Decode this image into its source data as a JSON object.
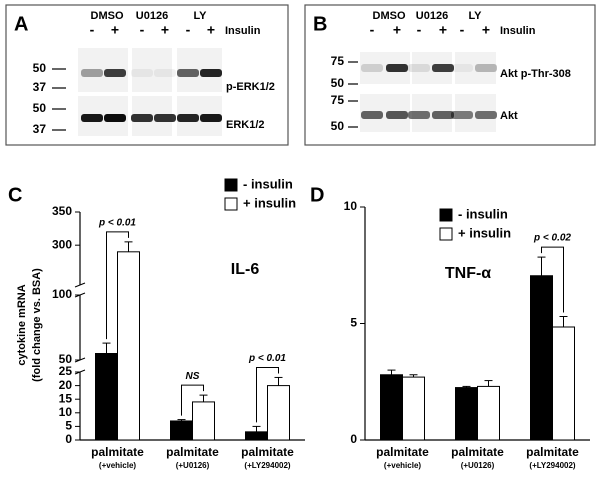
{
  "blots": [
    {
      "panel": "A",
      "groups": [
        "DMSO",
        "U0126",
        "LY"
      ],
      "lanes": [
        "-",
        "+",
        "-",
        "+",
        "-",
        "+"
      ],
      "treatment": "Insulin",
      "markers": [
        50,
        37,
        50,
        37
      ],
      "bands": [
        "p-ERK1/2",
        "ERK1/2"
      ]
    },
    {
      "panel": "B",
      "groups": [
        "DMSO",
        "U0126",
        "LY"
      ],
      "lanes": [
        "-",
        "+",
        "-",
        "+",
        "-",
        "+"
      ],
      "treatment": "Insulin",
      "markers": [
        75,
        50,
        75,
        50
      ],
      "bands": [
        "Akt p-Thr-308",
        "Akt"
      ]
    }
  ],
  "chart_data": [
    {
      "type": "bar",
      "panel": "C",
      "title": "IL-6",
      "ylabel": [
        "cytokine mRNA",
        "(fold change vs. BSA)"
      ],
      "categories": [
        "palmitate",
        "palmitate",
        "palmitate"
      ],
      "category_notes": [
        "(+vehicle)",
        "(+U0126)",
        "(+LY294002)"
      ],
      "series": [
        {
          "name": "- insulin",
          "color": "#000000",
          "values": [
            55,
            7,
            3
          ],
          "errors": [
            8,
            0.5,
            2
          ]
        },
        {
          "name": "+ insulin",
          "color": "#ffffff",
          "values": [
            290,
            14,
            20
          ],
          "errors": [
            15,
            2.5,
            3
          ]
        }
      ],
      "ylim": [
        0,
        350
      ],
      "yticks": [
        0,
        5,
        10,
        15,
        20,
        25,
        50,
        100,
        300,
        350
      ],
      "y_breaks": [
        [
          0,
          25
        ],
        [
          50,
          100
        ],
        [
          240,
          350
        ]
      ],
      "annotations": [
        {
          "text": "p < 0.01",
          "category": 0
        },
        {
          "text": "NS",
          "category": 1
        },
        {
          "text": "p < 0.01",
          "category": 2
        }
      ],
      "legend": "upper right"
    },
    {
      "type": "bar",
      "panel": "D",
      "title": "TNF-α",
      "categories": [
        "palmitate",
        "palmitate",
        "palmitate"
      ],
      "category_notes": [
        "(+vehicle)",
        "(+U0126)",
        "(+LY294002)"
      ],
      "series": [
        {
          "name": "- insulin",
          "color": "#000000",
          "values": [
            2.8,
            2.25,
            7.05
          ],
          "errors": [
            0.2,
            0.05,
            0.8
          ]
        },
        {
          "name": "+ insulin",
          "color": "#ffffff",
          "values": [
            2.7,
            2.3,
            4.85
          ],
          "errors": [
            0.1,
            0.25,
            0.45
          ]
        }
      ],
      "ylim": [
        0,
        10
      ],
      "yticks": [
        0,
        5,
        10
      ],
      "annotations": [
        {
          "text": "p < 0.02",
          "category": 2
        }
      ],
      "legend": "upper center"
    }
  ]
}
